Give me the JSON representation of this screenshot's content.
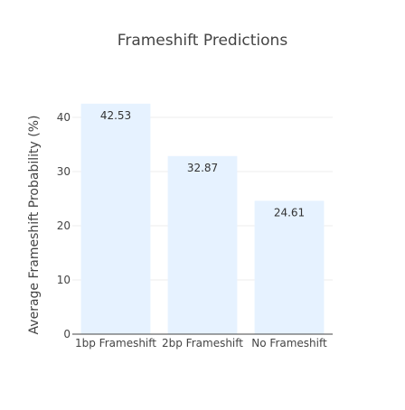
{
  "chart_data": {
    "type": "bar",
    "title": "Frameshift Predictions",
    "xlabel": "",
    "ylabel": "Average Frameshift Probability (%)",
    "categories": [
      "1bp Frameshift",
      "2bp Frameshift",
      "No Frameshift"
    ],
    "values": [
      42.53,
      32.87,
      24.61
    ],
    "data_labels": [
      "42.53",
      "32.87",
      "24.61"
    ],
    "ylim": [
      0,
      45
    ],
    "yticks": [
      0,
      10,
      20,
      30,
      40
    ],
    "grid": true,
    "legend": "none",
    "colors": {
      "bar_fill": "#e6f2ff",
      "grid": "#eeeeee",
      "axis": "#444444",
      "text": "#444444"
    }
  }
}
